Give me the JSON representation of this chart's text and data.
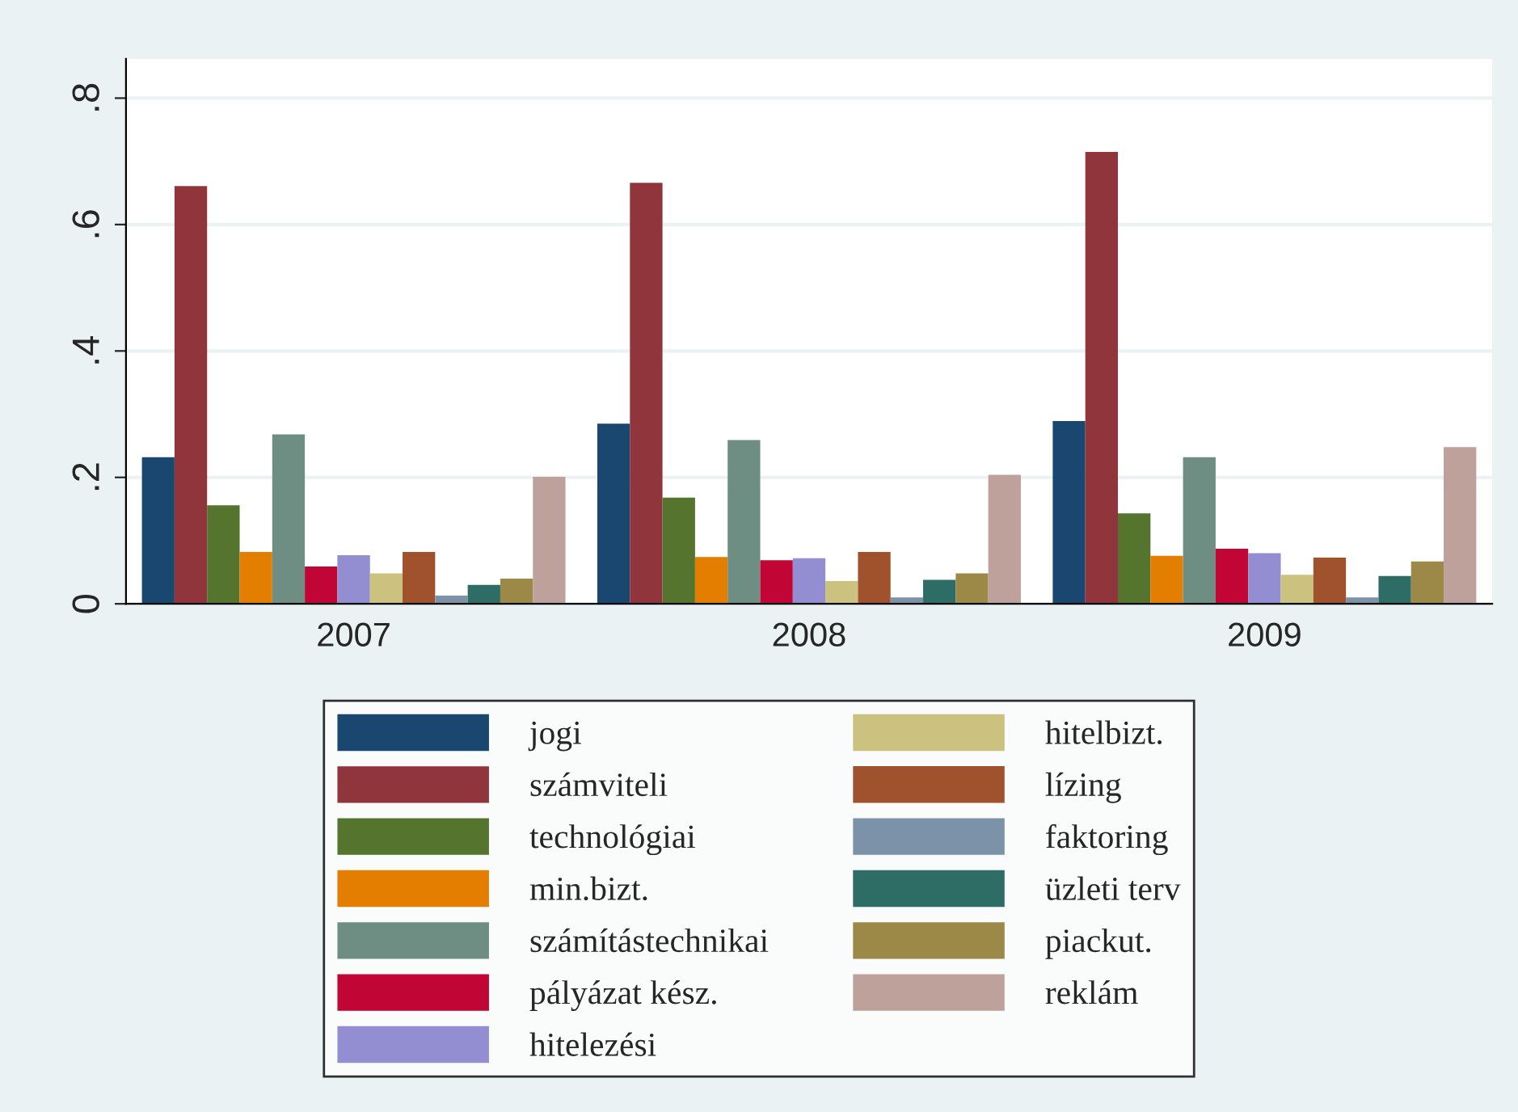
{
  "chart_data": {
    "type": "bar",
    "categories": [
      "2007",
      "2008",
      "2009"
    ],
    "series": [
      {
        "name": "jogi",
        "color": "#1a476f",
        "values": [
          0.232,
          0.285,
          0.289
        ]
      },
      {
        "name": "számviteli",
        "color": "#90353b",
        "values": [
          0.661,
          0.666,
          0.715
        ]
      },
      {
        "name": "technológiai",
        "color": "#55752f",
        "values": [
          0.156,
          0.168,
          0.143
        ]
      },
      {
        "name": "min.bizt.",
        "color": "#e37e00",
        "values": [
          0.082,
          0.074,
          0.076
        ]
      },
      {
        "name": "számítástechnikai",
        "color": "#6e8e84",
        "values": [
          0.268,
          0.259,
          0.232
        ]
      },
      {
        "name": "pályázat kész.",
        "color": "#c10534",
        "values": [
          0.059,
          0.069,
          0.087
        ]
      },
      {
        "name": "hitelezési",
        "color": "#938dd2",
        "values": [
          0.077,
          0.072,
          0.08
        ]
      },
      {
        "name": "hitelbizt.",
        "color": "#cac27e",
        "values": [
          0.048,
          0.036,
          0.046
        ]
      },
      {
        "name": "lízing",
        "color": "#a0522d",
        "values": [
          0.082,
          0.082,
          0.073
        ]
      },
      {
        "name": "faktoring",
        "color": "#7b92a8",
        "values": [
          0.013,
          0.01,
          0.01
        ]
      },
      {
        "name": "üzleti terv",
        "color": "#2d6d66",
        "values": [
          0.03,
          0.038,
          0.044
        ]
      },
      {
        "name": "piackut.",
        "color": "#9c8847",
        "values": [
          0.04,
          0.048,
          0.067
        ]
      },
      {
        "name": "reklám",
        "color": "#bfa19c",
        "values": [
          0.201,
          0.204,
          0.248
        ]
      }
    ],
    "ylim": [
      0,
      0.862
    ],
    "yticks": [
      0,
      {
        "value": 0.2,
        "label": ".2"
      },
      {
        "value": 0.4,
        "label": ".4"
      },
      {
        "value": 0.6,
        "label": ".6"
      },
      {
        "value": 0.8,
        "label": ".8"
      }
    ],
    "grid": "y",
    "legend": "bottom"
  }
}
